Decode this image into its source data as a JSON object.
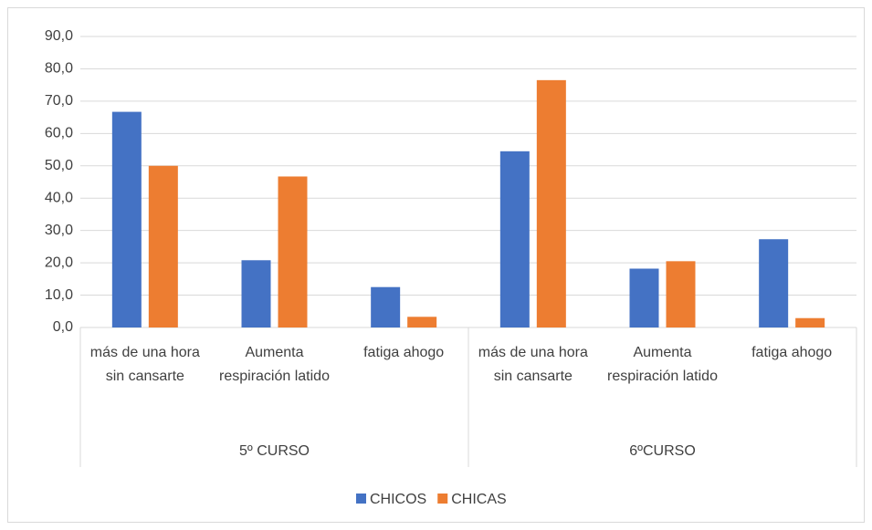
{
  "chart_data": {
    "type": "bar",
    "categories": [
      "más de una hora sin cansarte",
      "Aumenta respiración latido",
      "fatiga ahogo",
      "más de una hora sin cansarte",
      "Aumenta respiración latido",
      "fatiga ahogo"
    ],
    "groups": [
      "5º CURSO",
      "6ºCURSO"
    ],
    "series": [
      {
        "name": "CHICOS",
        "color": "#4472c4",
        "values": [
          66.7,
          20.8,
          12.5,
          54.5,
          18.2,
          27.3
        ]
      },
      {
        "name": "CHICAS",
        "color": "#ed7d31",
        "values": [
          50.0,
          46.7,
          3.3,
          76.5,
          20.5,
          2.9
        ]
      }
    ],
    "ylim": [
      0,
      90
    ],
    "yticks": [
      {
        "value": 0,
        "label": "0,0"
      },
      {
        "value": 10,
        "label": "10,0"
      },
      {
        "value": 20,
        "label": "20,0"
      },
      {
        "value": 30,
        "label": "30,0"
      },
      {
        "value": 40,
        "label": "40,0"
      },
      {
        "value": 50,
        "label": "50,0"
      },
      {
        "value": 60,
        "label": "60,0"
      },
      {
        "value": 70,
        "label": "70,0"
      },
      {
        "value": 80,
        "label": "80,0"
      },
      {
        "value": 90,
        "label": "90,0"
      }
    ],
    "grid": true,
    "legend": "bottom"
  }
}
